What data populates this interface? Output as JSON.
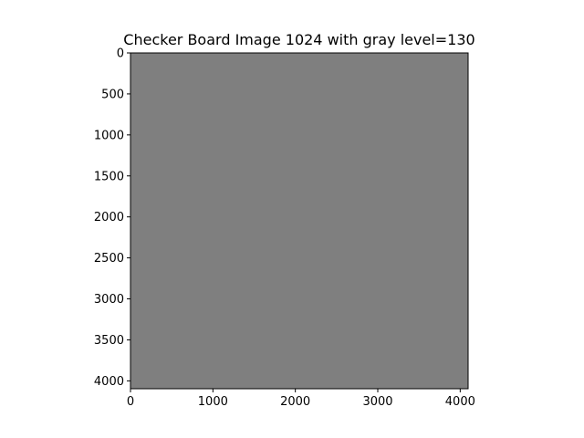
{
  "chart_data": {
    "type": "heatmap",
    "title": "Checker Board Image 1024 with gray level=130",
    "xlabel": "",
    "ylabel": "",
    "xlim": [
      0,
      4096
    ],
    "ylim": [
      4096,
      0
    ],
    "x_ticks": [
      0,
      1000,
      2000,
      3000,
      4000
    ],
    "y_ticks": [
      0,
      500,
      1000,
      1500,
      2000,
      2500,
      3000,
      3500,
      4000
    ],
    "x_tick_labels": [
      "0",
      "1000",
      "2000",
      "3000",
      "4000"
    ],
    "y_tick_labels": [
      "0",
      "500",
      "1000",
      "1500",
      "2000",
      "2500",
      "3000",
      "3500",
      "4000"
    ],
    "image": {
      "width": 4096,
      "height": 4096,
      "gray_level": 130,
      "fill_color": "#7f7f7f",
      "stripe_color": "#828282"
    },
    "grid": false,
    "colormap": "gray"
  }
}
